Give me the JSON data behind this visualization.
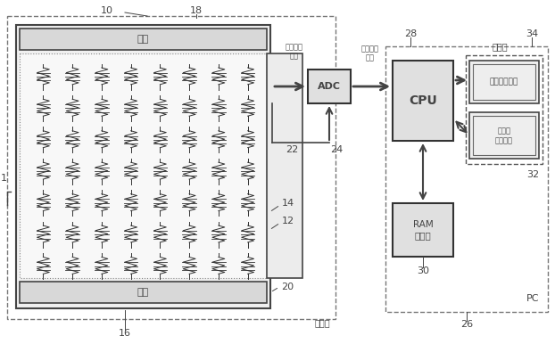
{
  "bg_color": "#ffffff",
  "line_color": "#444444",
  "fill_light": "#e8e8e8",
  "fill_white": "#f5f5f5",
  "labels": {
    "1": "1",
    "10": "10",
    "12": "12",
    "14": "14",
    "16": "16",
    "18": "18",
    "20": "20",
    "22": "22",
    "24": "24",
    "26": "26",
    "28": "28",
    "30": "30",
    "32": "32",
    "34": "34"
  },
  "text_labels": {
    "sokutei": "測定",
    "hosho": "補償",
    "analog_out": "アナログ\n出力",
    "digital_out": "デジタル\n出力",
    "ADC": "ADC",
    "CPU": "CPU",
    "video": "ビデオ",
    "display": "ディスプレイ",
    "ram": "RAM\nメモリ",
    "large_mem": "大容量\n記憶装置",
    "camera": "カメラ",
    "PC": "PC"
  }
}
